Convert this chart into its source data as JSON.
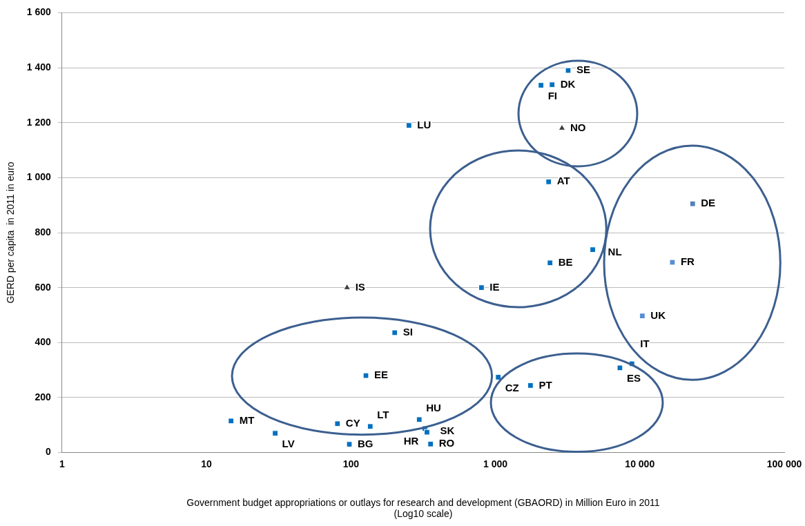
{
  "chart_data": {
    "type": "scatter",
    "xlabel": "Government budget appropriations or outlays for research and development (GBAORD) in Million Euro in 2011\n(Log10 scale)",
    "ylabel": "GERD per capita  in 2011 in euro",
    "log": "x",
    "grid": "y",
    "legend": false,
    "xlim": [
      1,
      100000
    ],
    "xticks": [
      1,
      10,
      100,
      {
        "value": 1000,
        "label": "1 000"
      },
      {
        "value": 10000,
        "label": "10 000"
      },
      {
        "value": 100000,
        "label": "100 000"
      }
    ],
    "ylim": [
      0,
      1600
    ],
    "yticks": [
      0,
      200,
      400,
      600,
      800,
      {
        "value": 1000,
        "label": "1 000"
      },
      {
        "value": 1200,
        "label": "1 200"
      },
      {
        "value": 1400,
        "label": "1 400"
      },
      {
        "value": 1600,
        "label": "1 600"
      }
    ],
    "series": [
      {
        "marker": "square",
        "colors": [
          "#0070c0",
          "#0070c0",
          "#0070c0",
          "#0070c0",
          "#0070c0",
          "#0070c0",
          "#0070c0",
          "#0070c0",
          "#0070c0",
          "#0070c0",
          "#0070c0",
          "#0070c0",
          "#0070c0",
          "#0070c0",
          "#0070c0",
          "#0070c0",
          "#0070c0",
          "#0070c0",
          "#0070c0",
          "#0070c0",
          "#558ed5",
          "#558ed5",
          "#4f81bd",
          "#0070c0",
          "#0070c0",
          "#0070c0"
        ],
        "x": [
          14.8,
          29.9,
          80.7,
          97.5,
          136,
          127,
          201,
          297,
          325,
          336,
          356,
          252,
          801,
          1047,
          1750,
          2338,
          2390,
          4720,
          7280,
          8810,
          10400,
          16800,
          23200,
          2070,
          2470,
          3190
        ],
        "values": [
          115,
          70,
          105,
          30,
          95,
          280,
          436,
          120,
          87,
          74,
          31,
          1190,
          600,
          274,
          244,
          985,
          690,
          738,
          308,
          323,
          497,
          692,
          905,
          1336,
          1338,
          1390
        ]
      },
      {
        "marker": "triangle",
        "color": "#404040",
        "x": [
          94,
          2890
        ],
        "values": [
          600,
          1180
        ]
      }
    ],
    "annotations": [
      {
        "text": "MT",
        "x": 14.8,
        "y": 115
      },
      {
        "text": "LV",
        "x": 29.9,
        "y": 70
      },
      {
        "text": "CY",
        "x": 80.7,
        "y": 105
      },
      {
        "text": "BG",
        "x": 97.5,
        "y": 30
      },
      {
        "text": "LT",
        "x": 136,
        "y": 95
      },
      {
        "text": "EE",
        "x": 127,
        "y": 280
      },
      {
        "text": "SI",
        "x": 201,
        "y": 436
      },
      {
        "text": "HU",
        "x": 297,
        "y": 120
      },
      {
        "text": "SK",
        "x": 325,
        "y": 87
      },
      {
        "text": "HR",
        "x": 336,
        "y": 74
      },
      {
        "text": "RO",
        "x": 356,
        "y": 31
      },
      {
        "text": "LU",
        "x": 252,
        "y": 1190
      },
      {
        "text": "IE",
        "x": 801,
        "y": 600
      },
      {
        "text": "CZ",
        "x": 1047,
        "y": 274
      },
      {
        "text": "PT",
        "x": 1750,
        "y": 244
      },
      {
        "text": "AT",
        "x": 2338,
        "y": 985
      },
      {
        "text": "BE",
        "x": 2390,
        "y": 690
      },
      {
        "text": "NL",
        "x": 4720,
        "y": 738
      },
      {
        "text": "ES",
        "x": 7280,
        "y": 308
      },
      {
        "text": "IT",
        "x": 8810,
        "y": 323
      },
      {
        "text": "UK",
        "x": 10400,
        "y": 497
      },
      {
        "text": "FR",
        "x": 16800,
        "y": 692
      },
      {
        "text": "DE",
        "x": 23200,
        "y": 905
      },
      {
        "text": "FI",
        "x": 2070,
        "y": 1336
      },
      {
        "text": "DK",
        "x": 2470,
        "y": 1338
      },
      {
        "text": "SE",
        "x": 3190,
        "y": 1390
      },
      {
        "text": "IS",
        "x": 94,
        "y": 600
      },
      {
        "text": "NO",
        "x": 2890,
        "y": 1180
      }
    ]
  }
}
